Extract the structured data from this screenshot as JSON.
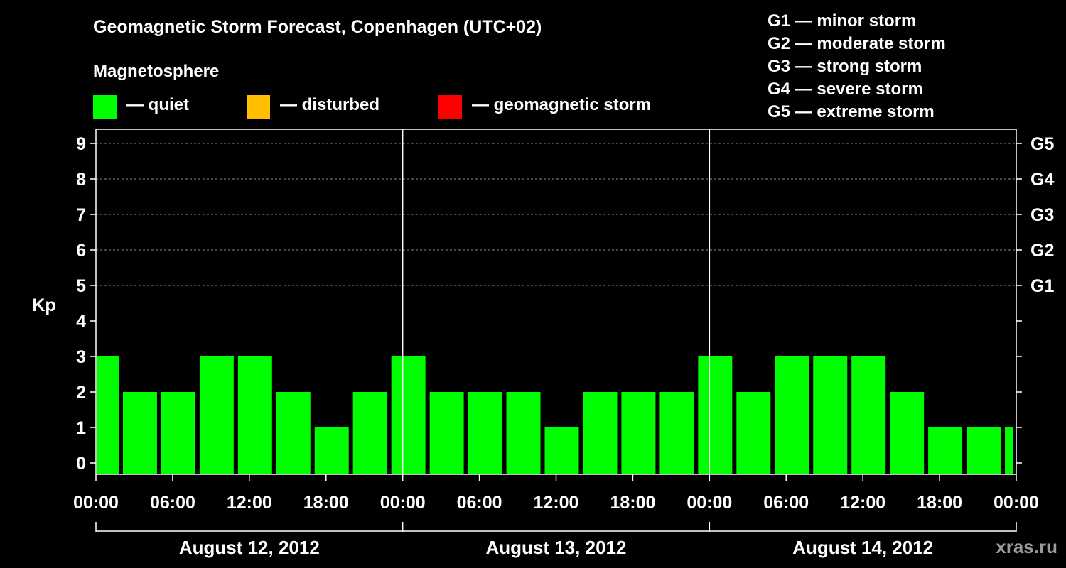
{
  "title": "Geomagnetic Storm Forecast, Copenhagen (UTC+02)",
  "magnetosphere_heading": "Magnetosphere",
  "legend": [
    {
      "label": "— quiet",
      "color": "#00ff00"
    },
    {
      "label": "— disturbed",
      "color": "#ffbf00"
    },
    {
      "label": "— geomagnetic storm",
      "color": "#ff0000"
    }
  ],
  "storm_scale": [
    "G1 — minor storm",
    "G2 — moderate storm",
    "G3 — strong storm",
    "G4 — severe storm",
    "G5 — extreme storm"
  ],
  "watermark": "xras.ru",
  "chart_data": {
    "type": "bar",
    "ylabel": "Kp",
    "ylim": [
      0,
      9
    ],
    "yticks": [
      0,
      1,
      2,
      3,
      4,
      5,
      6,
      7,
      8,
      9
    ],
    "right_axis_labels": [
      {
        "kp": 5,
        "label": "G1"
      },
      {
        "kp": 6,
        "label": "G2"
      },
      {
        "kp": 7,
        "label": "G3"
      },
      {
        "kp": 8,
        "label": "G4"
      },
      {
        "kp": 9,
        "label": "G5"
      }
    ],
    "x_start": "2012-08-12 00:00",
    "x_end": "2012-08-15 00:00",
    "x_tick_labels": [
      "00:00",
      "06:00",
      "12:00",
      "18:00",
      "00:00",
      "06:00",
      "12:00",
      "18:00",
      "00:00",
      "06:00",
      "12:00",
      "18:00",
      "00:00"
    ],
    "days": [
      "August 12, 2012",
      "August 13, 2012",
      "August 14, 2012"
    ],
    "grid": "dashed horizontal at Kp 5–9",
    "bars": [
      {
        "start": "2012-08-12 00:00",
        "end": "2012-08-12 02:00",
        "kp": 3,
        "level": "quiet"
      },
      {
        "start": "2012-08-12 02:00",
        "end": "2012-08-12 05:00",
        "kp": 2,
        "level": "quiet"
      },
      {
        "start": "2012-08-12 05:00",
        "end": "2012-08-12 08:00",
        "kp": 2,
        "level": "quiet"
      },
      {
        "start": "2012-08-12 08:00",
        "end": "2012-08-12 11:00",
        "kp": 3,
        "level": "quiet"
      },
      {
        "start": "2012-08-12 11:00",
        "end": "2012-08-12 14:00",
        "kp": 3,
        "level": "quiet"
      },
      {
        "start": "2012-08-12 14:00",
        "end": "2012-08-12 17:00",
        "kp": 2,
        "level": "quiet"
      },
      {
        "start": "2012-08-12 17:00",
        "end": "2012-08-12 20:00",
        "kp": 1,
        "level": "quiet"
      },
      {
        "start": "2012-08-12 20:00",
        "end": "2012-08-12 23:00",
        "kp": 2,
        "level": "quiet"
      },
      {
        "start": "2012-08-12 23:00",
        "end": "2012-08-13 02:00",
        "kp": 3,
        "level": "quiet"
      },
      {
        "start": "2012-08-13 02:00",
        "end": "2012-08-13 05:00",
        "kp": 2,
        "level": "quiet"
      },
      {
        "start": "2012-08-13 05:00",
        "end": "2012-08-13 08:00",
        "kp": 2,
        "level": "quiet"
      },
      {
        "start": "2012-08-13 08:00",
        "end": "2012-08-13 11:00",
        "kp": 2,
        "level": "quiet"
      },
      {
        "start": "2012-08-13 11:00",
        "end": "2012-08-13 14:00",
        "kp": 1,
        "level": "quiet"
      },
      {
        "start": "2012-08-13 14:00",
        "end": "2012-08-13 17:00",
        "kp": 2,
        "level": "quiet"
      },
      {
        "start": "2012-08-13 17:00",
        "end": "2012-08-13 20:00",
        "kp": 2,
        "level": "quiet"
      },
      {
        "start": "2012-08-13 20:00",
        "end": "2012-08-13 23:00",
        "kp": 2,
        "level": "quiet"
      },
      {
        "start": "2012-08-13 23:00",
        "end": "2012-08-14 02:00",
        "kp": 3,
        "level": "quiet"
      },
      {
        "start": "2012-08-14 02:00",
        "end": "2012-08-14 05:00",
        "kp": 2,
        "level": "quiet"
      },
      {
        "start": "2012-08-14 05:00",
        "end": "2012-08-14 08:00",
        "kp": 3,
        "level": "quiet"
      },
      {
        "start": "2012-08-14 08:00",
        "end": "2012-08-14 11:00",
        "kp": 3,
        "level": "quiet"
      },
      {
        "start": "2012-08-14 11:00",
        "end": "2012-08-14 14:00",
        "kp": 3,
        "level": "quiet"
      },
      {
        "start": "2012-08-14 14:00",
        "end": "2012-08-14 17:00",
        "kp": 2,
        "level": "quiet"
      },
      {
        "start": "2012-08-14 17:00",
        "end": "2012-08-14 20:00",
        "kp": 1,
        "level": "quiet"
      },
      {
        "start": "2012-08-14 20:00",
        "end": "2012-08-14 23:00",
        "kp": 1,
        "level": "quiet"
      },
      {
        "start": "2012-08-14 23:00",
        "end": "2012-08-15 00:00",
        "kp": 1,
        "level": "quiet"
      }
    ]
  }
}
